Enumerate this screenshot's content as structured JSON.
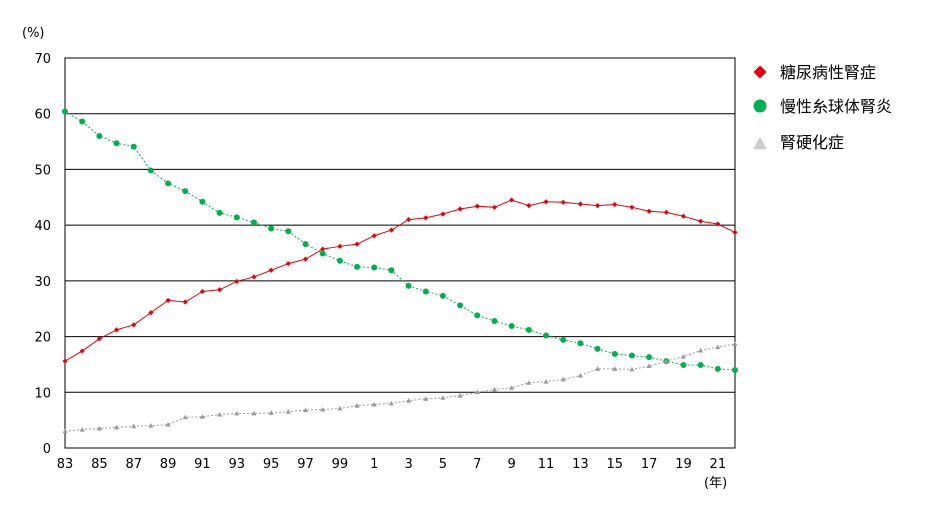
{
  "chart_data": {
    "type": "line",
    "y_unit_label": "(%)",
    "x_unit_label": "(年)",
    "ylim": [
      0,
      70
    ],
    "y_ticks": [
      0,
      10,
      20,
      30,
      40,
      50,
      60,
      70
    ],
    "x_tick_labels": [
      "83",
      "85",
      "87",
      "89",
      "91",
      "93",
      "95",
      "97",
      "99",
      "1",
      "3",
      "5",
      "7",
      "9",
      "11",
      "13",
      "15",
      "17",
      "19",
      "21"
    ],
    "x": [
      "83",
      "84",
      "85",
      "86",
      "87",
      "88",
      "89",
      "90",
      "91",
      "92",
      "93",
      "94",
      "95",
      "96",
      "97",
      "98",
      "99",
      "00",
      "01",
      "02",
      "03",
      "04",
      "05",
      "06",
      "07",
      "08",
      "09",
      "10",
      "11",
      "12",
      "13",
      "14",
      "15",
      "16",
      "17",
      "18",
      "19",
      "20",
      "21",
      "22"
    ],
    "grid": "horizontal",
    "legend_position": "right",
    "series": [
      {
        "name": "糖尿病性腎症",
        "color": "#e8000b",
        "marker": "diamond",
        "values": [
          15.6,
          17.4,
          19.6,
          21.2,
          22.1,
          24.3,
          26.5,
          26.2,
          28.1,
          28.4,
          29.9,
          30.7,
          31.9,
          33.1,
          33.9,
          35.7,
          36.2,
          36.6,
          38.1,
          39.1,
          41.0,
          41.3,
          42.0,
          42.9,
          43.4,
          43.2,
          44.5,
          43.5,
          44.2,
          44.1,
          43.8,
          43.5,
          43.7,
          43.2,
          42.5,
          42.3,
          41.6,
          40.7,
          40.2,
          38.7
        ]
      },
      {
        "name": "慢性糸球体腎炎",
        "color": "#00b050",
        "marker": "circle",
        "values": [
          60.4,
          58.6,
          56.0,
          54.7,
          54.1,
          49.8,
          47.5,
          46.1,
          44.2,
          42.2,
          41.4,
          40.5,
          39.4,
          38.9,
          36.6,
          34.9,
          33.6,
          32.5,
          32.4,
          31.9,
          29.1,
          28.1,
          27.3,
          25.6,
          23.8,
          22.8,
          21.9,
          21.2,
          20.2,
          19.4,
          18.8,
          17.8,
          16.9,
          16.6,
          16.3,
          15.6,
          14.9,
          14.9,
          14.2,
          14.0
        ]
      },
      {
        "name": "腎硬化症",
        "color": "#999999",
        "marker": "triangle",
        "values": [
          3.0,
          3.3,
          3.5,
          3.7,
          3.9,
          4.0,
          4.2,
          5.5,
          5.6,
          6.0,
          6.2,
          6.2,
          6.3,
          6.5,
          6.8,
          6.9,
          7.1,
          7.6,
          7.8,
          8.0,
          8.5,
          8.8,
          9.0,
          9.4,
          10.0,
          10.5,
          10.8,
          11.7,
          11.9,
          12.3,
          13.0,
          14.2,
          14.2,
          14.1,
          14.7,
          15.6,
          16.4,
          17.5,
          18.1,
          18.7
        ]
      }
    ]
  }
}
